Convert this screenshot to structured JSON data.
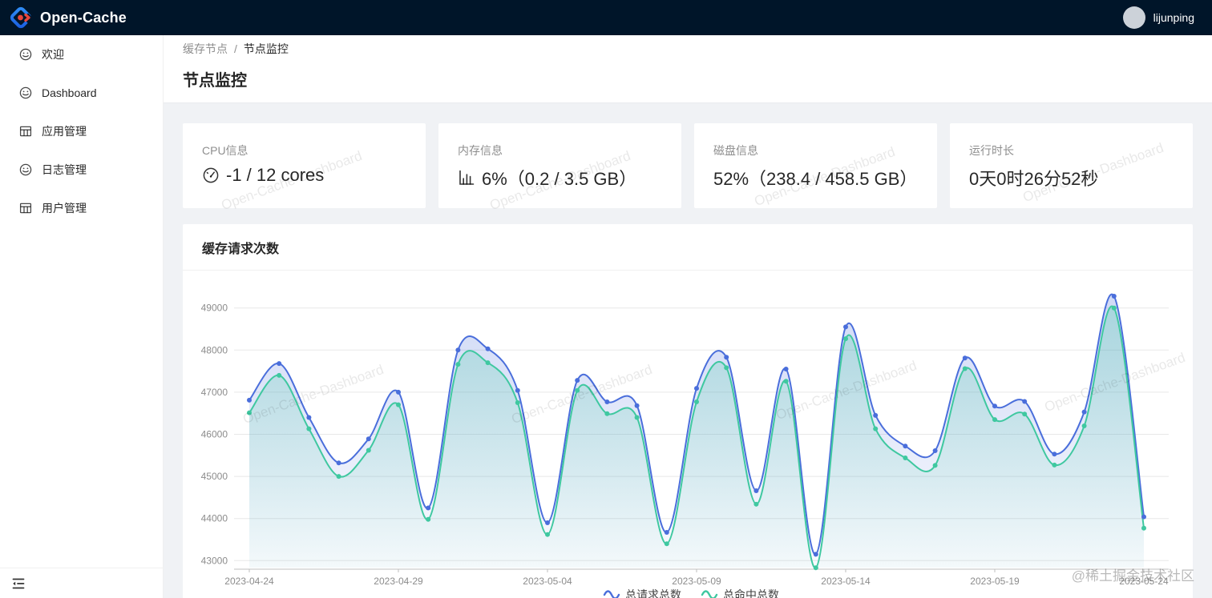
{
  "navbar": {
    "brand": "Open-Cache",
    "username": "lijunping"
  },
  "sidebar": {
    "items": [
      {
        "icon": "smile-icon",
        "label": "欢迎"
      },
      {
        "icon": "smile-icon",
        "label": "Dashboard"
      },
      {
        "icon": "table-icon",
        "label": "应用管理"
      },
      {
        "icon": "smile-icon",
        "label": "日志管理"
      },
      {
        "icon": "table-icon",
        "label": "用户管理"
      }
    ]
  },
  "breadcrumb": {
    "parent": "缓存节点",
    "separator": "/",
    "current": "节点监控"
  },
  "page": {
    "title": "节点监控"
  },
  "stats": [
    {
      "label": "CPU信息",
      "icon": "gauge-icon",
      "value": "-1 / 12 cores"
    },
    {
      "label": "内存信息",
      "icon": "bar-chart-icon",
      "value": "6%（0.2 / 3.5 GB）"
    },
    {
      "label": "磁盘信息",
      "icon": "",
      "value": "52%（238.4 / 458.5 GB）"
    },
    {
      "label": "运行时长",
      "icon": "",
      "value": "0天0时26分52秒"
    }
  ],
  "chart_card": {
    "title": "缓存请求次数"
  },
  "chart_data": {
    "type": "area",
    "title": "缓存请求次数",
    "x": [
      "2023-04-24",
      "2023-04-25",
      "2023-04-26",
      "2023-04-27",
      "2023-04-28",
      "2023-04-29",
      "2023-04-30",
      "2023-05-01",
      "2023-05-02",
      "2023-05-03",
      "2023-05-04",
      "2023-05-05",
      "2023-05-06",
      "2023-05-07",
      "2023-05-08",
      "2023-05-09",
      "2023-05-10",
      "2023-05-11",
      "2023-05-12",
      "2023-05-13",
      "2023-05-14",
      "2023-05-15",
      "2023-05-16",
      "2023-05-17",
      "2023-05-18",
      "2023-05-19",
      "2023-05-20",
      "2023-05-21",
      "2023-05-22",
      "2023-05-23",
      "2023-05-24"
    ],
    "series": [
      {
        "name": "总请求总数",
        "color": "#4a6edb",
        "values": [
          46810,
          47680,
          46400,
          45320,
          45890,
          47000,
          44250,
          48000,
          48030,
          47040,
          43900,
          47280,
          46770,
          46680,
          43670,
          47090,
          47830,
          44660,
          47550,
          43150,
          48550,
          46450,
          45720,
          45610,
          47810,
          46670,
          46780,
          45530,
          46530,
          49280,
          44040
        ]
      },
      {
        "name": "总命中总数",
        "color": "#3fc8a0",
        "values": [
          46510,
          47400,
          46130,
          45000,
          45620,
          46700,
          43980,
          47660,
          47700,
          46750,
          43620,
          47040,
          46490,
          46400,
          43400,
          46770,
          47580,
          44340,
          47260,
          42830,
          48270,
          46130,
          45440,
          45260,
          47560,
          46350,
          46480,
          45270,
          46200,
          49000,
          43770
        ]
      }
    ],
    "ylim": [
      43000,
      49000
    ],
    "y_ticks": [
      43000,
      44000,
      45000,
      46000,
      47000,
      48000,
      49000
    ],
    "x_label_step": 5,
    "legend_position": "bottom",
    "grid": "horizontal"
  },
  "watermark": {
    "text": "Open-Cache-Dashboard"
  },
  "footer_watermark": "@稀土掘金技术社区",
  "colors": {
    "navbar_bg": "#001529",
    "primary_line": "#4a6edb",
    "secondary_line": "#3fc8a0",
    "logo_blue": "#2f7cf6",
    "logo_red": "#e8463c",
    "axis_text": "#8c8c8c",
    "grid_line": "#e8e8e8"
  }
}
